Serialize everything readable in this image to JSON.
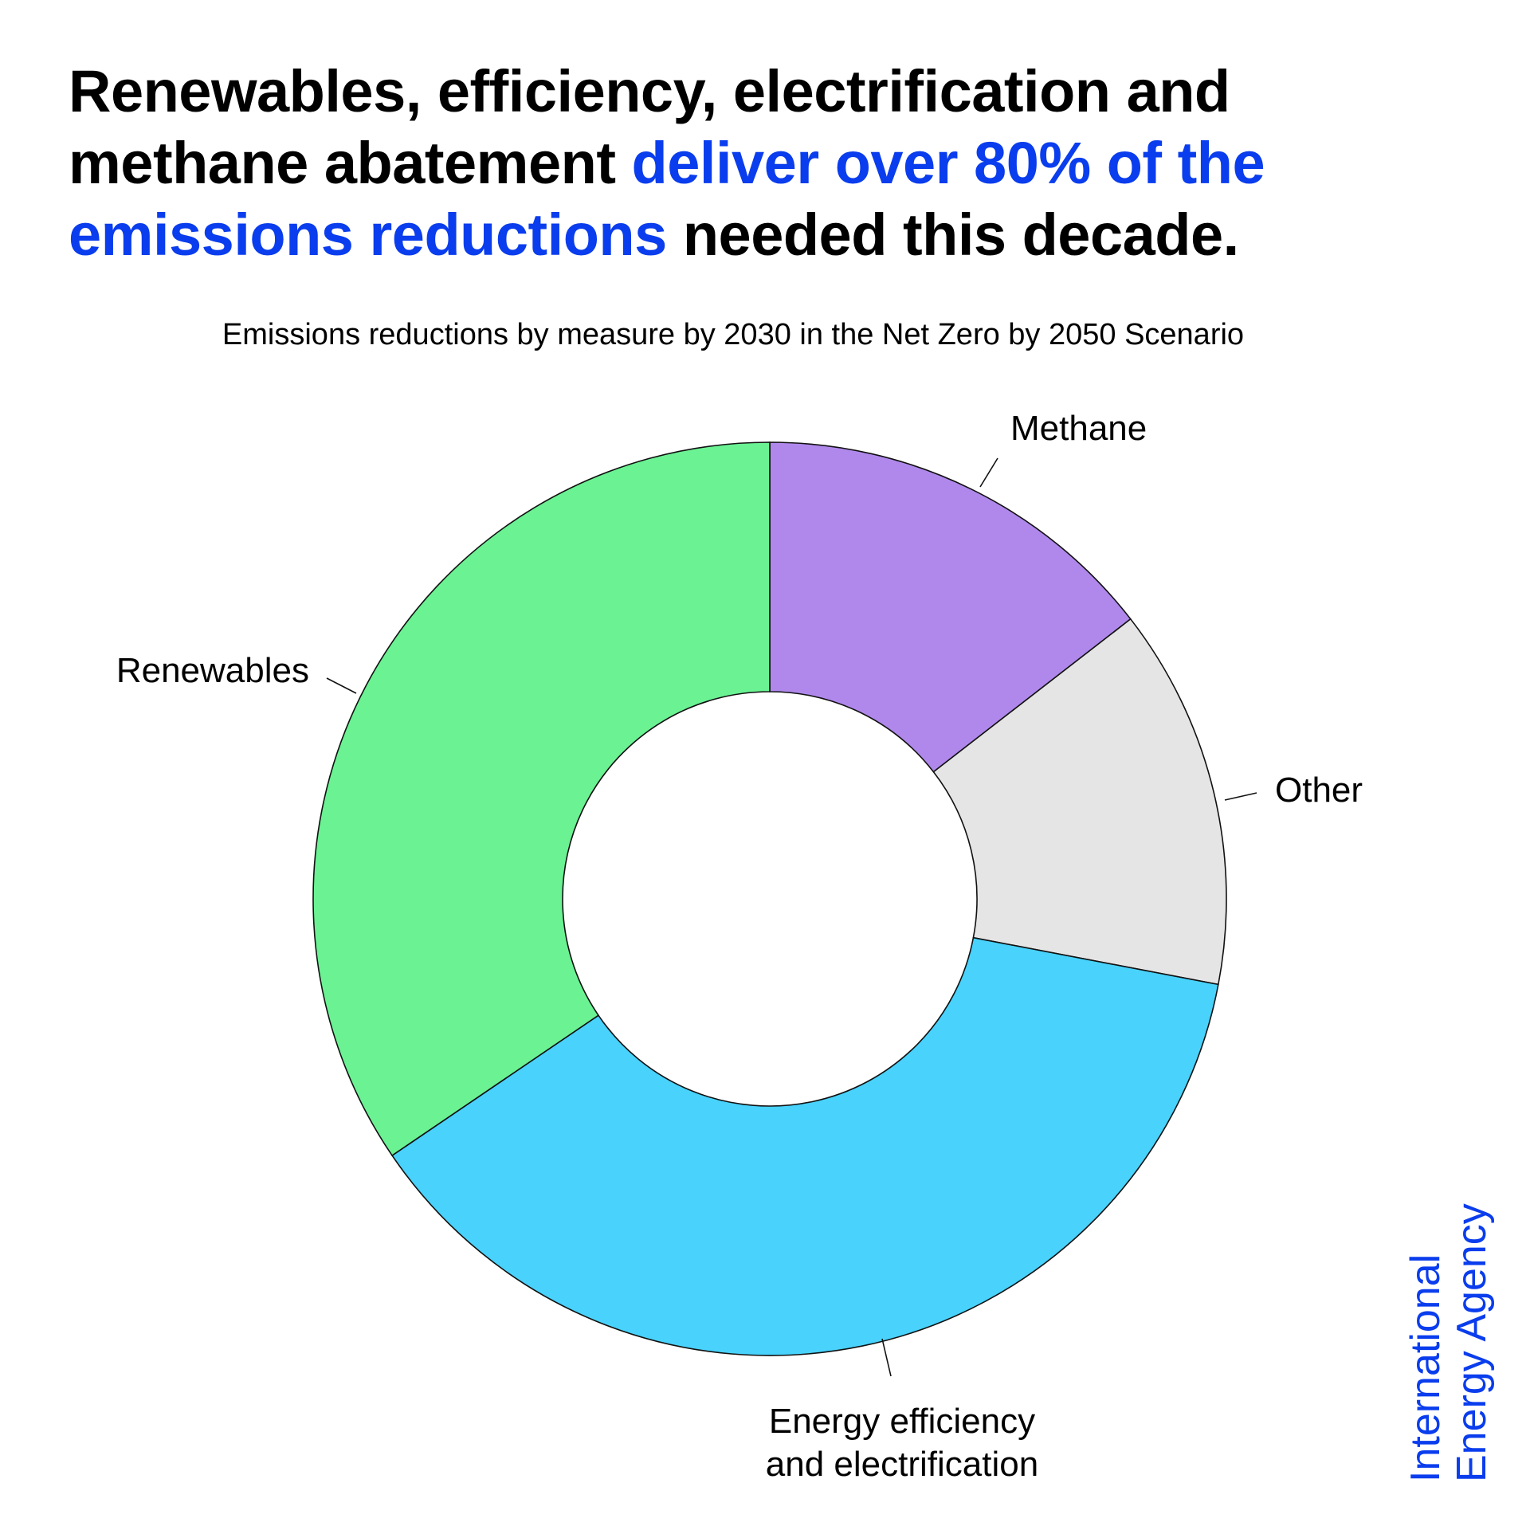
{
  "headline": {
    "part1": "Renewables, efficiency, electrification and methane abatement ",
    "highlight": "deliver over 80% of the emissions reductions",
    "part2": " needed this decade.",
    "highlight_color": "#0a3ded"
  },
  "logo": {
    "line1": "International",
    "line2": "Energy Agency",
    "color": "#0a3ded"
  },
  "chart_data": {
    "type": "pie",
    "donut": true,
    "title": "Emissions reductions by measure by 2030 in the Net Zero by 2050 Scenario",
    "unit": "share of emissions reductions (approx. %)",
    "start_angle_deg": 0,
    "direction": "clockwise",
    "slices": [
      {
        "name": "Methane",
        "label_lines": [
          "Methane"
        ],
        "value": 14.5,
        "color": "#b088ec"
      },
      {
        "name": "Other",
        "label_lines": [
          "Other"
        ],
        "value": 13.5,
        "color": "#e5e5e5"
      },
      {
        "name": "Energy efficiency and electrification",
        "label_lines": [
          "Energy efficiency",
          "and electrification"
        ],
        "value": 37.5,
        "color": "#48d2fc"
      },
      {
        "name": "Renewables",
        "label_lines": [
          "Renewables"
        ],
        "value": 34.5,
        "color": "#6af293"
      }
    ]
  }
}
